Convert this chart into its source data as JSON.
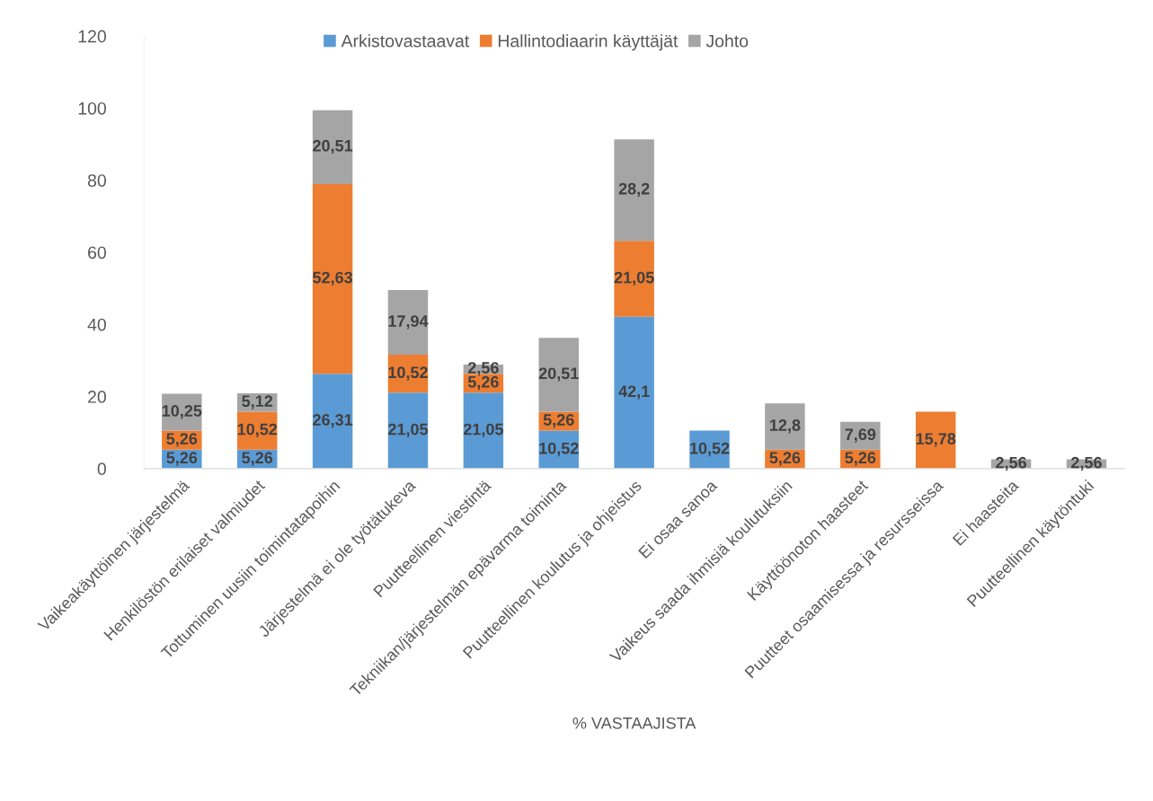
{
  "chart_data": {
    "type": "bar",
    "stacked": true,
    "xlabel": "% VASTAAJISTA",
    "categories": [
      "Vaikeakäyttöinen järjestelmä",
      "Henkilöstön erilaiset valmiudet",
      "Tottuminen uusiin toimintatapoihin",
      "Järjestelmä ei ole työtätukeva",
      "Puutteellinen viestintä",
      "Tekniikan/järjestelmän epävarma toiminta",
      "Puutteellinen koulutus ja ohjeistus",
      "Ei osaa sanoa",
      "Vaikeus saada ihmisiä koulutuksiin",
      "Käyttöönoton haasteet",
      "Puutteet osaamisessa ja resursseissa",
      "Ei haasteita",
      "Puutteellinen käytöntuki"
    ],
    "series": [
      {
        "name": "Arkistovastaavat",
        "color": "#5b9bd5",
        "values": [
          5.26,
          5.26,
          26.31,
          21.05,
          21.05,
          10.52,
          42.1,
          10.52,
          null,
          null,
          null,
          null,
          null
        ],
        "value_labels": [
          "5,26",
          "5,26",
          "26,31",
          "21,05",
          "21,05",
          "10,52",
          "42,1",
          "10,52",
          null,
          null,
          null,
          null,
          null
        ]
      },
      {
        "name": "Hallintodiaarin käyttäjät",
        "color": "#ed7d31",
        "values": [
          5.26,
          10.52,
          52.63,
          10.52,
          5.26,
          5.26,
          21.05,
          null,
          5.26,
          5.26,
          15.78,
          null,
          null
        ],
        "value_labels": [
          "5,26",
          "10,52",
          "52,63",
          "10,52",
          "5,26",
          "5,26",
          "21,05",
          null,
          "5,26",
          "5,26",
          "15,78",
          null,
          null
        ]
      },
      {
        "name": "Johto",
        "color": "#a5a5a5",
        "values": [
          10.25,
          5.12,
          20.51,
          17.94,
          2.56,
          20.51,
          28.2,
          null,
          12.8,
          7.69,
          null,
          2.56,
          2.56
        ],
        "value_labels": [
          "10,25",
          "5,12",
          "20,51",
          "17,94",
          "2,56",
          "20,51",
          "28,2",
          null,
          "12,8",
          "7,69",
          null,
          "2,56",
          "2,56"
        ]
      }
    ],
    "ylim": [
      0,
      120
    ],
    "yticks": [
      0,
      20,
      40,
      60,
      80,
      100,
      120
    ],
    "grid": false,
    "legend": "top"
  }
}
